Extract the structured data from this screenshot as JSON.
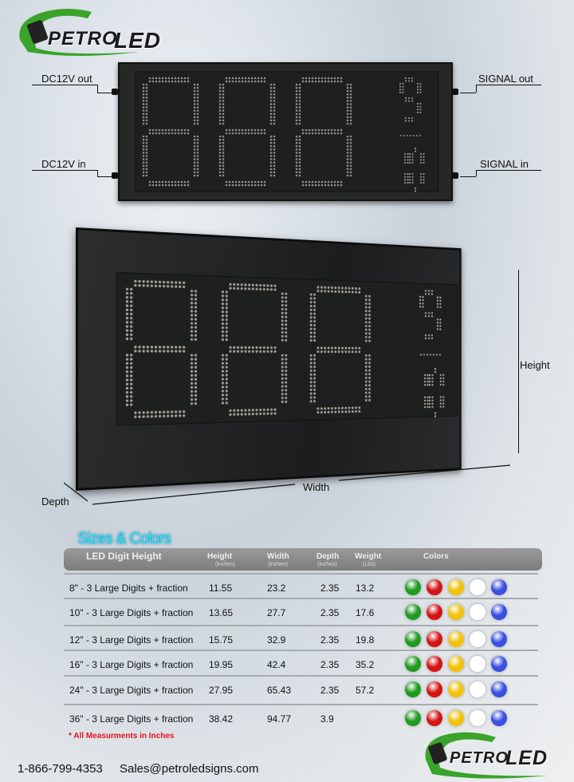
{
  "brand": {
    "name_part1": "PETRO",
    "name_accent": "O",
    "name_part2": "LED",
    "colors": {
      "green": "#3aa32a",
      "red": "#d31a1a"
    }
  },
  "top_display": {
    "digits": "888",
    "fraction_top": "9",
    "fraction_bottom": "10",
    "labels": {
      "dc_out": "DC12V out",
      "dc_in": "DC12V in",
      "signal_out": "SIGNAL out",
      "signal_in": "SIGNAL in"
    }
  },
  "big_display": {
    "digits": "888",
    "fraction_top": "9",
    "fraction_bottom": "10",
    "labels": {
      "height": "Height",
      "width": "Width",
      "depth": "Depth"
    }
  },
  "table": {
    "title": "Sizes & Colors",
    "headers": [
      {
        "label": "LED Digit Height",
        "unit": ""
      },
      {
        "label": "Height",
        "unit": "(inches)"
      },
      {
        "label": "Width",
        "unit": "(inches)"
      },
      {
        "label": "Depth",
        "unit": "(inches)"
      },
      {
        "label": "Weight",
        "unit": "(Lbs)"
      },
      {
        "label": "Colors",
        "unit": ""
      }
    ],
    "rows": [
      {
        "size": "8\" - 3 Large Digits  + fraction",
        "height": "11.55",
        "width": "23.2",
        "depth": "2.35",
        "weight": "13.2"
      },
      {
        "size": "10\"  - 3 Large Digits  + fraction",
        "height": "13.65",
        "width": "27.7",
        "depth": "2.35",
        "weight": "17.6"
      },
      {
        "size": "12\" - 3 Large Digits  + fraction",
        "height": "15.75",
        "width": "32.9",
        "depth": "2.35",
        "weight": "19.8"
      },
      {
        "size": "16\" - 3 Large Digits  + fraction",
        "height": "19.95",
        "width": "42.4",
        "depth": "2.35",
        "weight": "35.2"
      },
      {
        "size": "24\" - 3 Large Digits  + fraction",
        "height": "27.95",
        "width": "65.43",
        "depth": "2.35",
        "weight": "57.2"
      },
      {
        "size": "36\" - 3 Large Digits  + fraction",
        "height": "38.42",
        "width": "94.77",
        "depth": "3.9",
        "weight": ""
      }
    ],
    "led_colors": [
      "#1f9a1f",
      "#d41414",
      "#f2c20a",
      "#ffffff",
      "#3a4fe0"
    ],
    "note": "* All Measurments in Inches"
  },
  "footer": {
    "phone": "1-866-799-4353",
    "email": "Sales@petroledsigns.com"
  }
}
